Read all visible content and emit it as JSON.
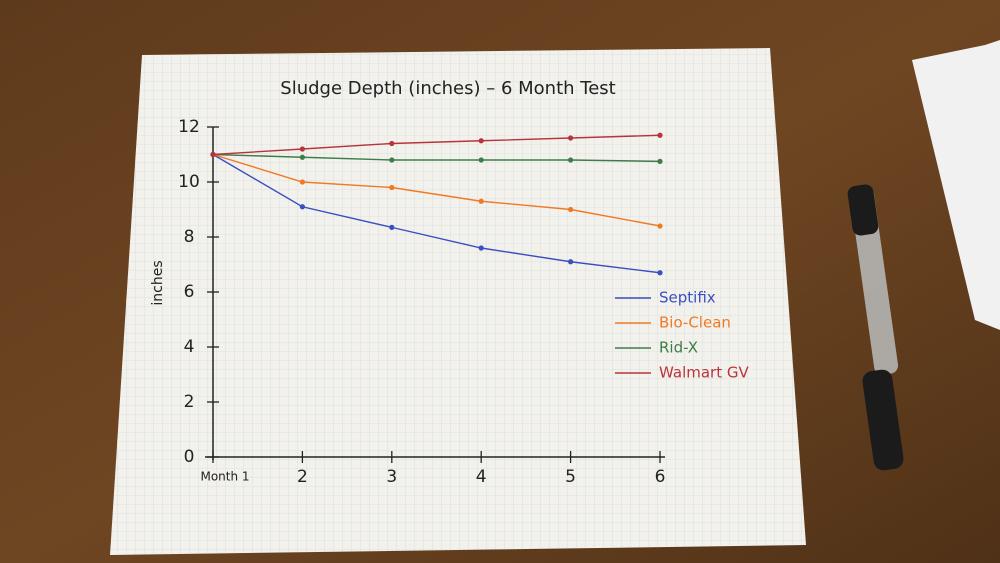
{
  "chart_data": {
    "type": "line",
    "title": "Sludge Depth (inches) – 6 Month Test",
    "y_label": "inches",
    "x": [
      1,
      2,
      3,
      4,
      5,
      6
    ],
    "xlim": [
      1,
      6
    ],
    "xticks": [
      {
        "value": 1,
        "label": "Month 1"
      },
      2,
      3,
      4,
      5,
      6
    ],
    "ylim": [
      0,
      12
    ],
    "yticks": [
      0,
      2,
      4,
      6,
      8,
      10,
      12
    ],
    "legend": "right",
    "series": [
      {
        "name": "Septifix",
        "color": "#3a4fc0",
        "values": [
          11,
          9.1,
          8.35,
          7.6,
          7.1,
          6.7
        ]
      },
      {
        "name": "Bio-Clean",
        "color": "#ef7a26",
        "values": [
          11,
          10,
          9.8,
          9.3,
          9.0,
          8.4
        ]
      },
      {
        "name": "Rid-X",
        "color": "#3d7d48",
        "values": [
          11,
          10.9,
          10.8,
          10.8,
          10.8,
          10.75
        ]
      },
      {
        "name": "Walmart GV",
        "color": "#b8343b",
        "values": [
          11,
          11.2,
          11.4,
          11.5,
          11.6,
          11.7
        ]
      }
    ]
  }
}
